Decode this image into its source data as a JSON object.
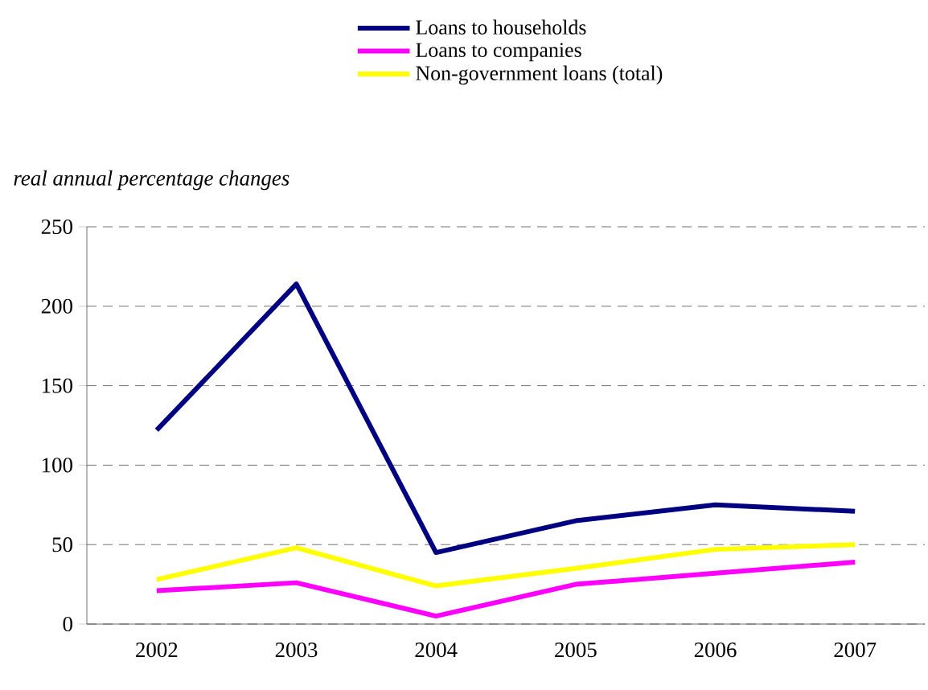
{
  "chart_data": {
    "type": "line",
    "ylabel": "real annual percentage changes",
    "categories": [
      "2002",
      "2003",
      "2004",
      "2005",
      "2006",
      "2007"
    ],
    "series": [
      {
        "name": "Loans to households",
        "color": "#000080",
        "values": [
          122,
          214,
          45,
          65,
          75,
          71
        ]
      },
      {
        "name": "Loans to companies",
        "color": "#ff00ff",
        "values": [
          21,
          26,
          5,
          25,
          32,
          39
        ]
      },
      {
        "name": "Non-government loans (total)",
        "color": "#ffff00",
        "values": [
          28,
          48,
          24,
          35,
          47,
          50
        ]
      }
    ],
    "ylim": [
      0,
      250
    ],
    "yticks": [
      0,
      50,
      100,
      150,
      200,
      250
    ],
    "grid": "y",
    "legend": "top",
    "marker": "none",
    "line_style": "solid"
  }
}
